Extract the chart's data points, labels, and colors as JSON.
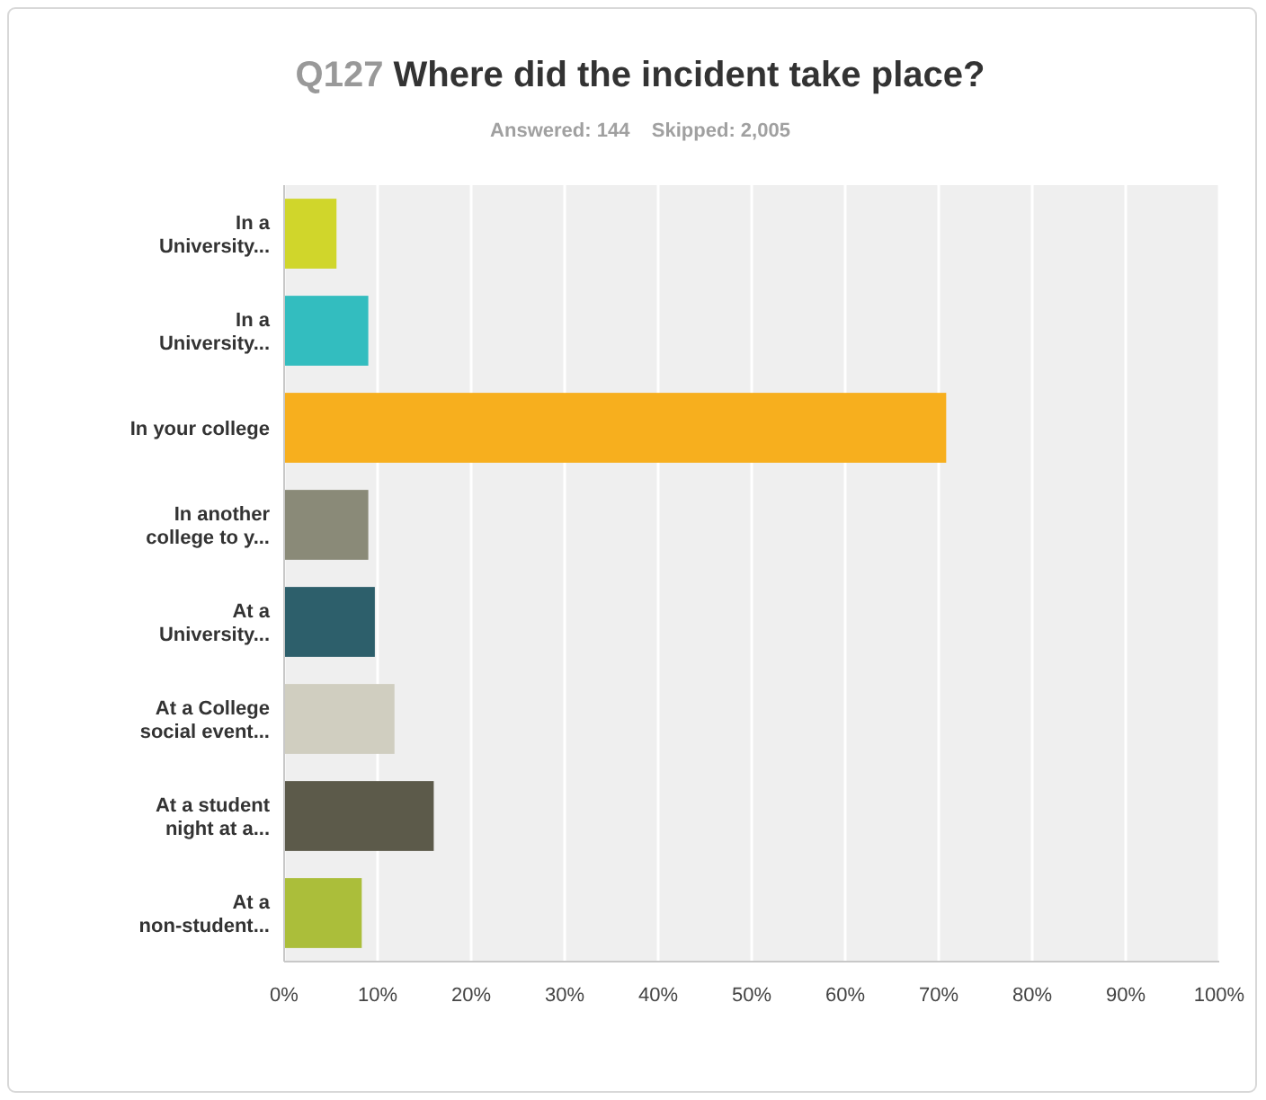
{
  "chart_data": {
    "type": "bar",
    "orientation": "horizontal",
    "title": "Q127 Where did the incident take place?",
    "subtitle": "Answered: 144    Skipped: 2,005",
    "categories": [
      "In a University...",
      "In a University...",
      "In your college",
      "In another college to y...",
      "At a University...",
      "At a College social event...",
      "At a student night at a...",
      "At a non-student..."
    ],
    "values": [
      5.6,
      9,
      70.8,
      9,
      9.7,
      11.8,
      16,
      8.3
    ],
    "colors": [
      "#d0d62b",
      "#33bdbf",
      "#f7af1e",
      "#8a8a78",
      "#2d5f6b",
      "#d0cec0",
      "#5c5a4a",
      "#abbe3a"
    ],
    "xlim": [
      0,
      100
    ],
    "xticks": [
      {
        "value": 0,
        "label": "0%"
      },
      {
        "value": 10,
        "label": "10%"
      },
      {
        "value": 20,
        "label": "20%"
      },
      {
        "value": 30,
        "label": "30%"
      },
      {
        "value": 40,
        "label": "40%"
      },
      {
        "value": 50,
        "label": "50%"
      },
      {
        "value": 60,
        "label": "60%"
      },
      {
        "value": 70,
        "label": "70%"
      },
      {
        "value": 80,
        "label": "80%"
      },
      {
        "value": 90,
        "label": "90%"
      },
      {
        "value": 100,
        "label": "100%"
      }
    ],
    "grid": "x"
  }
}
